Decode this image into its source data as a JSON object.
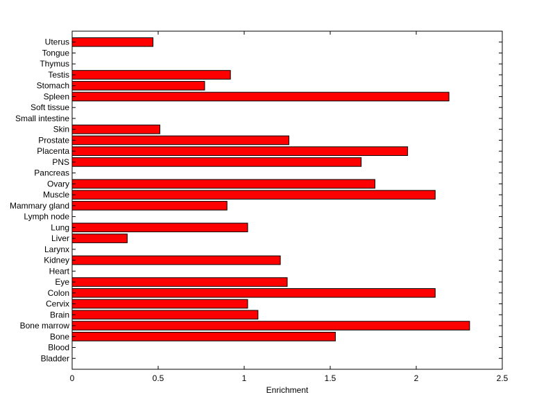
{
  "chart_data": {
    "type": "bar",
    "orientation": "horizontal",
    "xlabel": "Enrichment",
    "ylabel": "",
    "title": "",
    "xlim": [
      0,
      2.5
    ],
    "xticks": [
      0,
      0.5,
      1,
      1.5,
      2,
      2.5
    ],
    "xtick_labels": [
      "0",
      "0.5",
      "1",
      "1.5",
      "2",
      "2.5"
    ],
    "grid": false,
    "bar_color": "#ff0000",
    "categories": [
      "Bladder",
      "Blood",
      "Bone",
      "Bone marrow",
      "Brain",
      "Cervix",
      "Colon",
      "Eye",
      "Heart",
      "Kidney",
      "Larynx",
      "Liver",
      "Lung",
      "Lymph node",
      "Mammary gland",
      "Muscle",
      "Ovary",
      "Pancreas",
      "PNS",
      "Placenta",
      "Prostate",
      "Skin",
      "Small intestine",
      "Soft tissue",
      "Spleen",
      "Stomach",
      "Testis",
      "Thymus",
      "Tongue",
      "Uterus"
    ],
    "values": [
      0,
      0,
      1.53,
      2.31,
      1.08,
      1.02,
      2.11,
      1.25,
      0,
      1.21,
      0,
      0.32,
      1.02,
      0,
      0.9,
      2.11,
      1.76,
      0,
      1.68,
      1.95,
      1.26,
      0.51,
      0,
      0,
      2.19,
      0.77,
      0.92,
      0,
      0,
      0.47
    ]
  }
}
